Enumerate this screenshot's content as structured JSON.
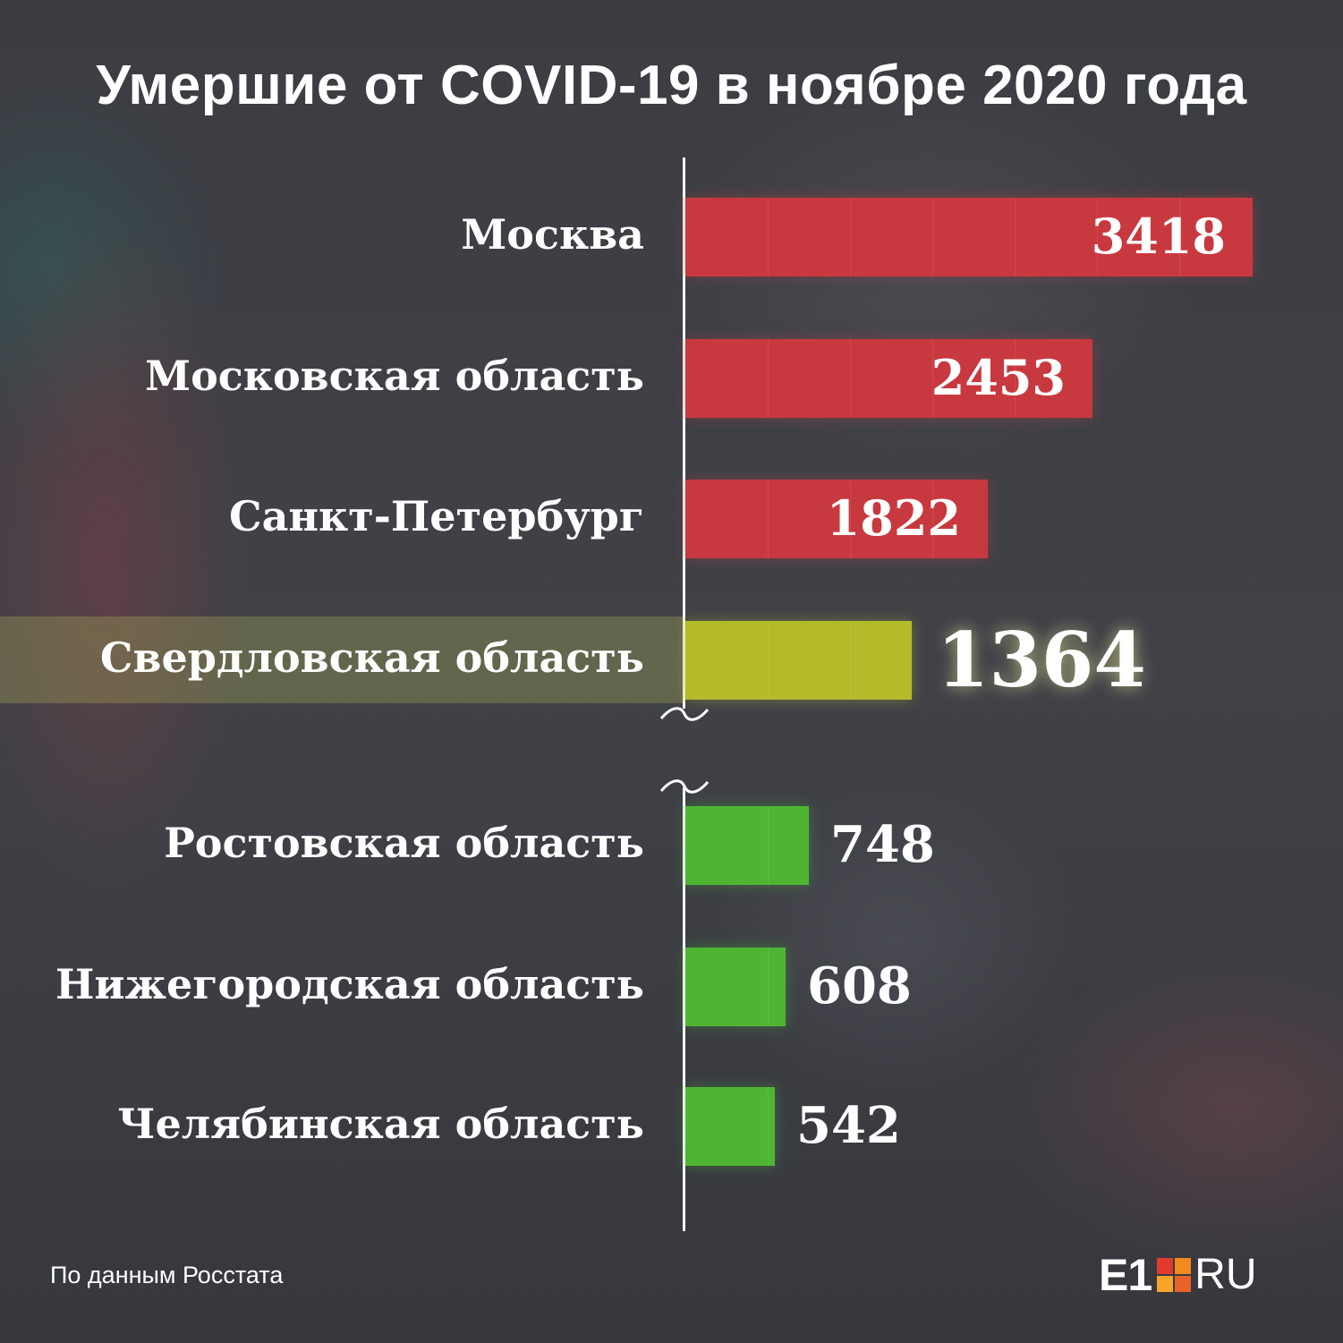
{
  "title": "Умершие от COVID-19 в ноябре 2020 года",
  "source": "По данным Росстата",
  "logo": {
    "e1": "E1",
    "ru": "RU"
  },
  "colors": {
    "red": "#c8393f",
    "yellow": "#b4bb2a",
    "green": "#4eb533",
    "logo_square_tl": "#e23b2e",
    "logo_square_tr": "#f28a1f",
    "logo_square_bl": "#f6a52a",
    "logo_square_br": "#e8622a"
  },
  "chart_data": {
    "type": "bar",
    "orientation": "horizontal",
    "axis_break": true,
    "categories": [
      "Москва",
      "Московская область",
      "Санкт-Петербург",
      "Свердловская область",
      "Ростовская область",
      "Нижегородская область",
      "Челябинская область"
    ],
    "values": [
      3418,
      2453,
      1822,
      1364,
      748,
      608,
      542
    ],
    "bar_colors": [
      "red",
      "red",
      "red",
      "yellow",
      "green",
      "green",
      "green"
    ],
    "highlight": "Свердловская область"
  }
}
